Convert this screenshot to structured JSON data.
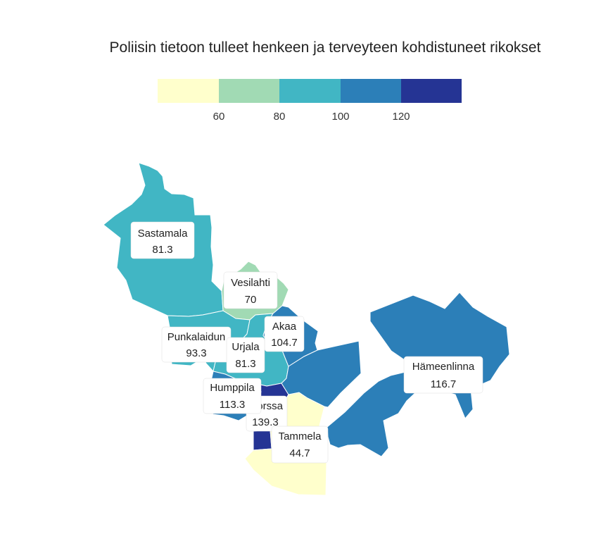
{
  "title": "Poliisin tietoon tulleet henkeen ja terveyteen kohdistuneet rikokset",
  "legend": {
    "bins": [
      {
        "color": "#ffffcc"
      },
      {
        "color": "#a1dab4"
      },
      {
        "color": "#41b6c4"
      },
      {
        "color": "#2c7fb8"
      },
      {
        "color": "#253494"
      }
    ],
    "ticks": [
      "60",
      "80",
      "100",
      "120"
    ]
  },
  "chart_data": {
    "type": "choropleth",
    "regions": [
      {
        "name": "Sastamala",
        "value": "81.3",
        "color": "#41b6c4"
      },
      {
        "name": "Vesilahti",
        "value": "70",
        "color": "#a1dab4"
      },
      {
        "name": "Akaa",
        "value": "104.7",
        "color": "#2c7fb8"
      },
      {
        "name": "Punkalaidun",
        "value": "93.3",
        "color": "#41b6c4"
      },
      {
        "name": "Urjala",
        "value": "81.3",
        "color": "#41b6c4"
      },
      {
        "name": "Humppila",
        "value": "113.3",
        "color": "#2c7fb8"
      },
      {
        "name": "Forssa",
        "value": "139.3",
        "color": "#253494"
      },
      {
        "name": "Tammela",
        "value": "44.7",
        "color": "#ffffcc"
      },
      {
        "name": "Hämeenlinna",
        "value": "116.7",
        "color": "#2c7fb8"
      }
    ]
  }
}
